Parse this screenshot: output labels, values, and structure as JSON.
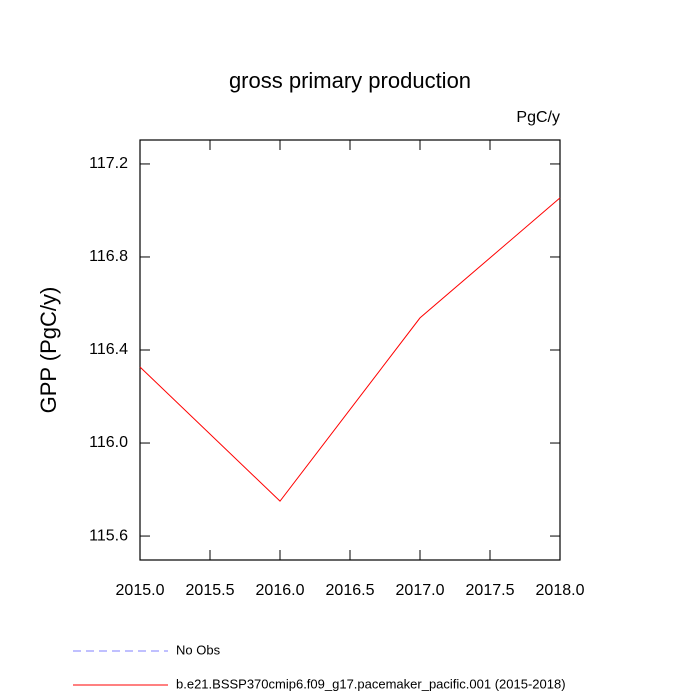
{
  "chart_data": {
    "type": "line",
    "title": "gross primary production",
    "units_label": "PgC/y",
    "y_label": "GPP  (PgC/y)",
    "x": [
      2015,
      2016,
      2017,
      2018
    ],
    "series": [
      {
        "name": "No Obs",
        "color": "#8080ff",
        "dashed": true,
        "values": [
          null,
          null,
          null,
          null
        ]
      },
      {
        "name": "b.e21.BSSP370cmip6.f09_g17.pacemaker_pacific.001 (2015-2018)",
        "color": "#ff0000",
        "dashed": false,
        "values": [
          116.327,
          115.75,
          116.538,
          117.054
        ]
      }
    ],
    "xlim": [
      2015,
      2018
    ],
    "xticks": [
      {
        "value": 2015,
        "label": "2015.0"
      },
      2015.5,
      {
        "value": 2016,
        "label": "2016.0"
      },
      2016.5,
      {
        "value": 2017,
        "label": "2017.0"
      },
      2017.5,
      {
        "value": 2018,
        "label": "2018.0"
      }
    ],
    "ylim": [
      115.497,
      117.303
    ],
    "yticks": [
      115.6,
      {
        "value": 116,
        "label": "116.0"
      },
      116.4,
      116.8,
      117.2
    ],
    "grid": false
  }
}
